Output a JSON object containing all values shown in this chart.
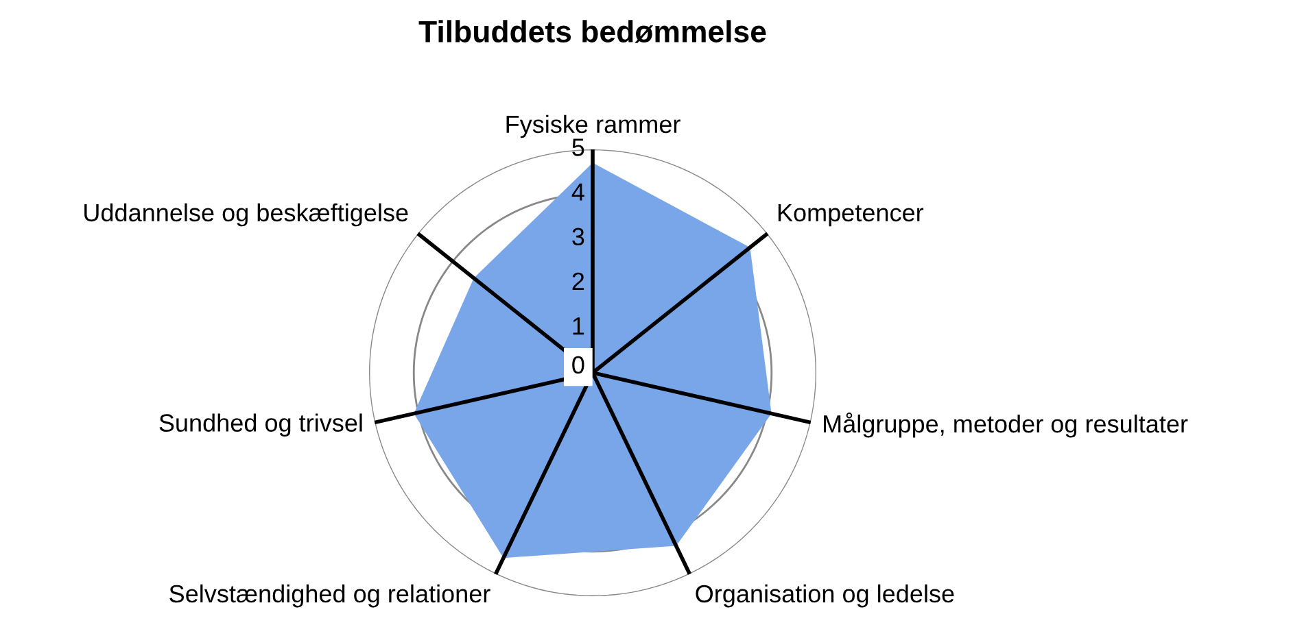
{
  "chart_data": {
    "type": "radar",
    "title": "Tilbuddets bedømmelse",
    "categories": [
      "Fysiske rammer",
      "Kompetencer",
      "Målgruppe, metoder og resultater",
      "Organisation og ledelse",
      "Selvstændighed og relationer",
      "Sundhed og trivsel",
      "Uddannelse og beskæftigelse"
    ],
    "series": [
      {
        "color": "#78a6e8",
        "values": [
          4.7,
          4.5,
          4.1,
          4.3,
          4.6,
          4.1,
          3.4
        ]
      }
    ],
    "ylim": [
      0,
      5
    ],
    "yticks": [
      0,
      1,
      2,
      3,
      4,
      5
    ],
    "grid": true,
    "legend": false
  }
}
